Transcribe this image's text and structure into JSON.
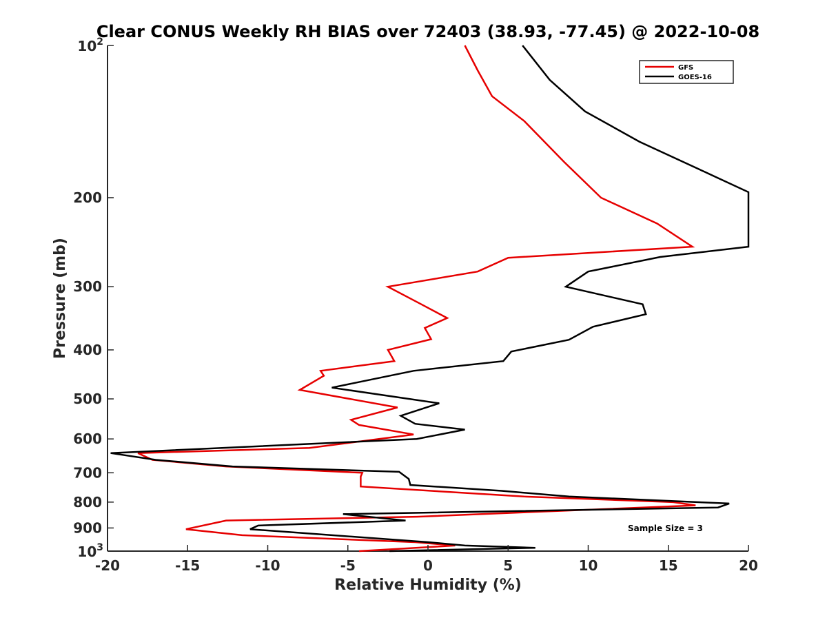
{
  "chart_data": {
    "type": "line",
    "title": "Clear CONUS Weekly RH BIAS over 72403 (38.93, -77.45) @ 2022-10-08",
    "xlabel": "Relative Humidity (%)",
    "ylabel": "Pressure (mb)",
    "xlim": [
      -20,
      20
    ],
    "ylim": [
      100,
      1000
    ],
    "y_scale": "log",
    "y_reversed": true,
    "grid": false,
    "legend_position": "top-right",
    "x_ticks": [
      "-20",
      "-15",
      "-10",
      "-5",
      "0",
      "5",
      "10",
      "15",
      "20"
    ],
    "y_ticks": [
      {
        "value": 100,
        "base": "10",
        "exp": "2"
      },
      {
        "value": 200,
        "label": "200"
      },
      {
        "value": 300,
        "label": "300"
      },
      {
        "value": 400,
        "label": "400"
      },
      {
        "value": 500,
        "label": "500"
      },
      {
        "value": 600,
        "label": "600"
      },
      {
        "value": 700,
        "label": "700"
      },
      {
        "value": 800,
        "label": "800"
      },
      {
        "value": 900,
        "label": "900"
      },
      {
        "value": 1000,
        "base": "10",
        "exp": "3"
      }
    ],
    "series": [
      {
        "name": "GFS",
        "color": "#e60000",
        "points": [
          [
            2.3,
            100
          ],
          [
            3.1,
            112
          ],
          [
            4.0,
            126
          ],
          [
            6.0,
            141
          ],
          [
            8.5,
            170
          ],
          [
            10.8,
            200
          ],
          [
            14.3,
            225
          ],
          [
            16.5,
            250
          ],
          [
            5.0,
            263
          ],
          [
            3.1,
            280
          ],
          [
            -2.5,
            300
          ],
          [
            -0.5,
            324
          ],
          [
            1.2,
            346
          ],
          [
            -0.2,
            362
          ],
          [
            0.2,
            381
          ],
          [
            -2.5,
            400
          ],
          [
            -2.1,
            421
          ],
          [
            -6.7,
            440
          ],
          [
            -6.5,
            450
          ],
          [
            -8.0,
            480
          ],
          [
            -1.9,
            520
          ],
          [
            -4.8,
            550
          ],
          [
            -4.3,
            563
          ],
          [
            -0.9,
            588
          ],
          [
            -3.9,
            605
          ],
          [
            -7.4,
            625
          ],
          [
            -18.1,
            640
          ],
          [
            -17.2,
            660
          ],
          [
            -12.6,
            680
          ],
          [
            -4.1,
            700
          ],
          [
            -4.2,
            712
          ],
          [
            -4.2,
            745
          ],
          [
            6.0,
            780
          ],
          [
            15.3,
            800
          ],
          [
            16.7,
            812
          ],
          [
            -0.7,
            855
          ],
          [
            -12.6,
            870
          ],
          [
            -15.1,
            905
          ],
          [
            -11.6,
            930
          ],
          [
            -0.8,
            960
          ],
          [
            1.7,
            975
          ],
          [
            -4.3,
            1000
          ]
        ]
      },
      {
        "name": "GOES-16",
        "color": "#000000",
        "points": [
          [
            5.9,
            100
          ],
          [
            7.6,
            117
          ],
          [
            9.8,
            135
          ],
          [
            13.2,
            155
          ],
          [
            17.3,
            178
          ],
          [
            20.0,
            195
          ],
          [
            20.0,
            250
          ],
          [
            14.5,
            262
          ],
          [
            10.0,
            280
          ],
          [
            8.6,
            300
          ],
          [
            13.4,
            325
          ],
          [
            13.6,
            340
          ],
          [
            10.3,
            360
          ],
          [
            8.8,
            382
          ],
          [
            5.2,
            403
          ],
          [
            4.7,
            421
          ],
          [
            -0.9,
            440
          ],
          [
            -6.0,
            475
          ],
          [
            0.7,
            510
          ],
          [
            -1.7,
            540
          ],
          [
            -0.8,
            560
          ],
          [
            2.3,
            575
          ],
          [
            -0.7,
            600
          ],
          [
            -19.8,
            640
          ],
          [
            -17.0,
            660
          ],
          [
            -12.2,
            680
          ],
          [
            -1.8,
            697
          ],
          [
            -1.2,
            720
          ],
          [
            -1.1,
            740
          ],
          [
            4.6,
            760
          ],
          [
            8.8,
            780
          ],
          [
            18.8,
            805
          ],
          [
            18.1,
            820
          ],
          [
            -5.3,
            845
          ],
          [
            -1.4,
            870
          ],
          [
            -10.6,
            890
          ],
          [
            -11.1,
            905
          ],
          [
            0.0,
            960
          ],
          [
            2.3,
            975
          ],
          [
            6.7,
            985
          ],
          [
            -2.4,
            1000
          ]
        ]
      }
    ],
    "annotation": "Sample Size = 3"
  }
}
